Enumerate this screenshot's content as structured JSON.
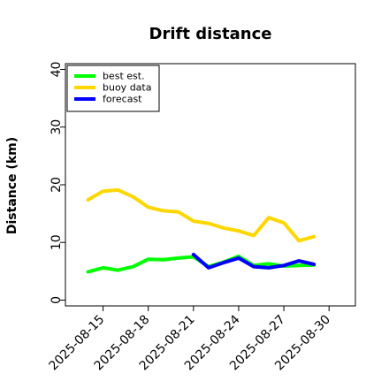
{
  "chart_data": {
    "type": "line",
    "title": "Drift distance",
    "ylabel": "Distance (km)",
    "xlabel": "",
    "ylim": [
      -1,
      41
    ],
    "y_ticks": [
      0,
      10,
      20,
      30,
      40
    ],
    "x_ticks": [
      "2025-08-15",
      "2025-08-18",
      "2025-08-21",
      "2025-08-24",
      "2025-08-27",
      "2025-08-30"
    ],
    "highlighted_tick": "2025-08-21",
    "highlight_color": "#228b22",
    "x_range": [
      "2025-08-12T12:00",
      "2025-08-31T18:00"
    ],
    "legend_position": "upper-left",
    "grid": false,
    "series": [
      {
        "name": "best est.",
        "color": "#00ff00",
        "points": [
          [
            "2025-08-14",
            4.9
          ],
          [
            "2025-08-15",
            5.6
          ],
          [
            "2025-08-16",
            5.2
          ],
          [
            "2025-08-17",
            5.8
          ],
          [
            "2025-08-18",
            7.1
          ],
          [
            "2025-08-19",
            7.0
          ],
          [
            "2025-08-20",
            7.3
          ],
          [
            "2025-08-21",
            7.5
          ],
          [
            "2025-08-22",
            5.8
          ],
          [
            "2025-08-23",
            6.6
          ],
          [
            "2025-08-24",
            7.6
          ],
          [
            "2025-08-25",
            6.0
          ],
          [
            "2025-08-26",
            6.3
          ],
          [
            "2025-08-27",
            5.9
          ],
          [
            "2025-08-28",
            6.0
          ],
          [
            "2025-08-29",
            6.1
          ]
        ]
      },
      {
        "name": "buoy data",
        "color": "#ffd700",
        "points": [
          [
            "2025-08-14",
            17.4
          ],
          [
            "2025-08-15",
            18.9
          ],
          [
            "2025-08-16",
            19.1
          ],
          [
            "2025-08-17",
            17.9
          ],
          [
            "2025-08-18",
            16.1
          ],
          [
            "2025-08-19",
            15.5
          ],
          [
            "2025-08-20",
            15.3
          ],
          [
            "2025-08-21",
            13.7
          ],
          [
            "2025-08-22",
            13.3
          ],
          [
            "2025-08-23",
            12.5
          ],
          [
            "2025-08-24",
            12.0
          ],
          [
            "2025-08-25",
            11.2
          ],
          [
            "2025-08-26",
            14.3
          ],
          [
            "2025-08-27",
            13.4
          ],
          [
            "2025-08-28",
            10.3
          ],
          [
            "2025-08-29",
            11.0
          ]
        ]
      },
      {
        "name": "forecast",
        "color": "#0000ff",
        "points": [
          [
            "2025-08-21",
            7.9
          ],
          [
            "2025-08-22",
            5.6
          ],
          [
            "2025-08-23",
            6.5
          ],
          [
            "2025-08-24",
            7.3
          ],
          [
            "2025-08-25",
            5.8
          ],
          [
            "2025-08-26",
            5.6
          ],
          [
            "2025-08-27",
            6.0
          ],
          [
            "2025-08-28",
            6.8
          ],
          [
            "2025-08-29",
            6.2
          ]
        ]
      }
    ]
  }
}
